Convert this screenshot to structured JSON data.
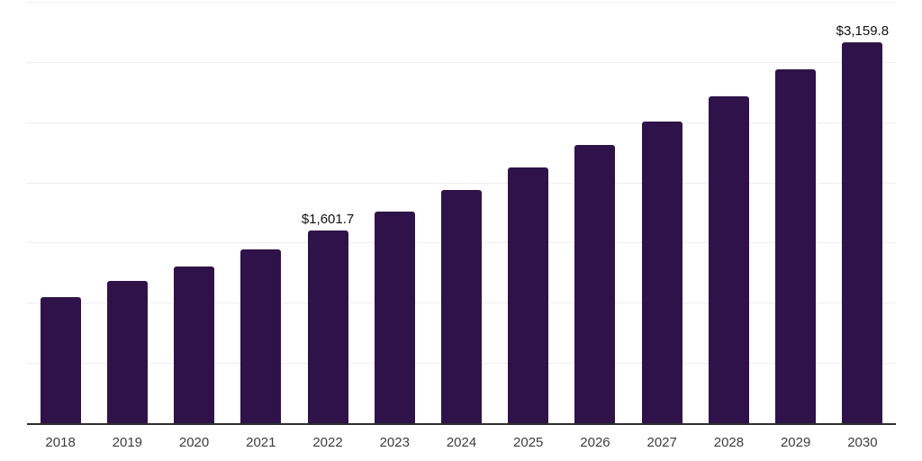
{
  "chart": {
    "background_color": "#ffffff",
    "bar_color": "#30124b",
    "grid_color": "#eeeeee",
    "axis_color": "#2d2d2d",
    "value_label_color": "#111111",
    "tick_label_color": "#3d3d3d"
  },
  "chart_data": {
    "type": "bar",
    "title": "",
    "xlabel": "",
    "ylabel": "",
    "categories": [
      "2018",
      "2019",
      "2020",
      "2021",
      "2022",
      "2023",
      "2024",
      "2025",
      "2026",
      "2027",
      "2028",
      "2029",
      "2030"
    ],
    "values": [
      1048,
      1180,
      1300,
      1445,
      1601.7,
      1760,
      1938,
      2126,
      2312,
      2506,
      2716,
      2940,
      3159.8
    ],
    "ylim": [
      0,
      3500
    ],
    "gridline_interval": 500,
    "grid": true,
    "legend": false,
    "y_axis_tick_labels_visible": false,
    "annotations": [
      {
        "category": "2022",
        "text": "$1,601.7"
      },
      {
        "category": "2030",
        "text": "$3,159.8"
      }
    ]
  }
}
